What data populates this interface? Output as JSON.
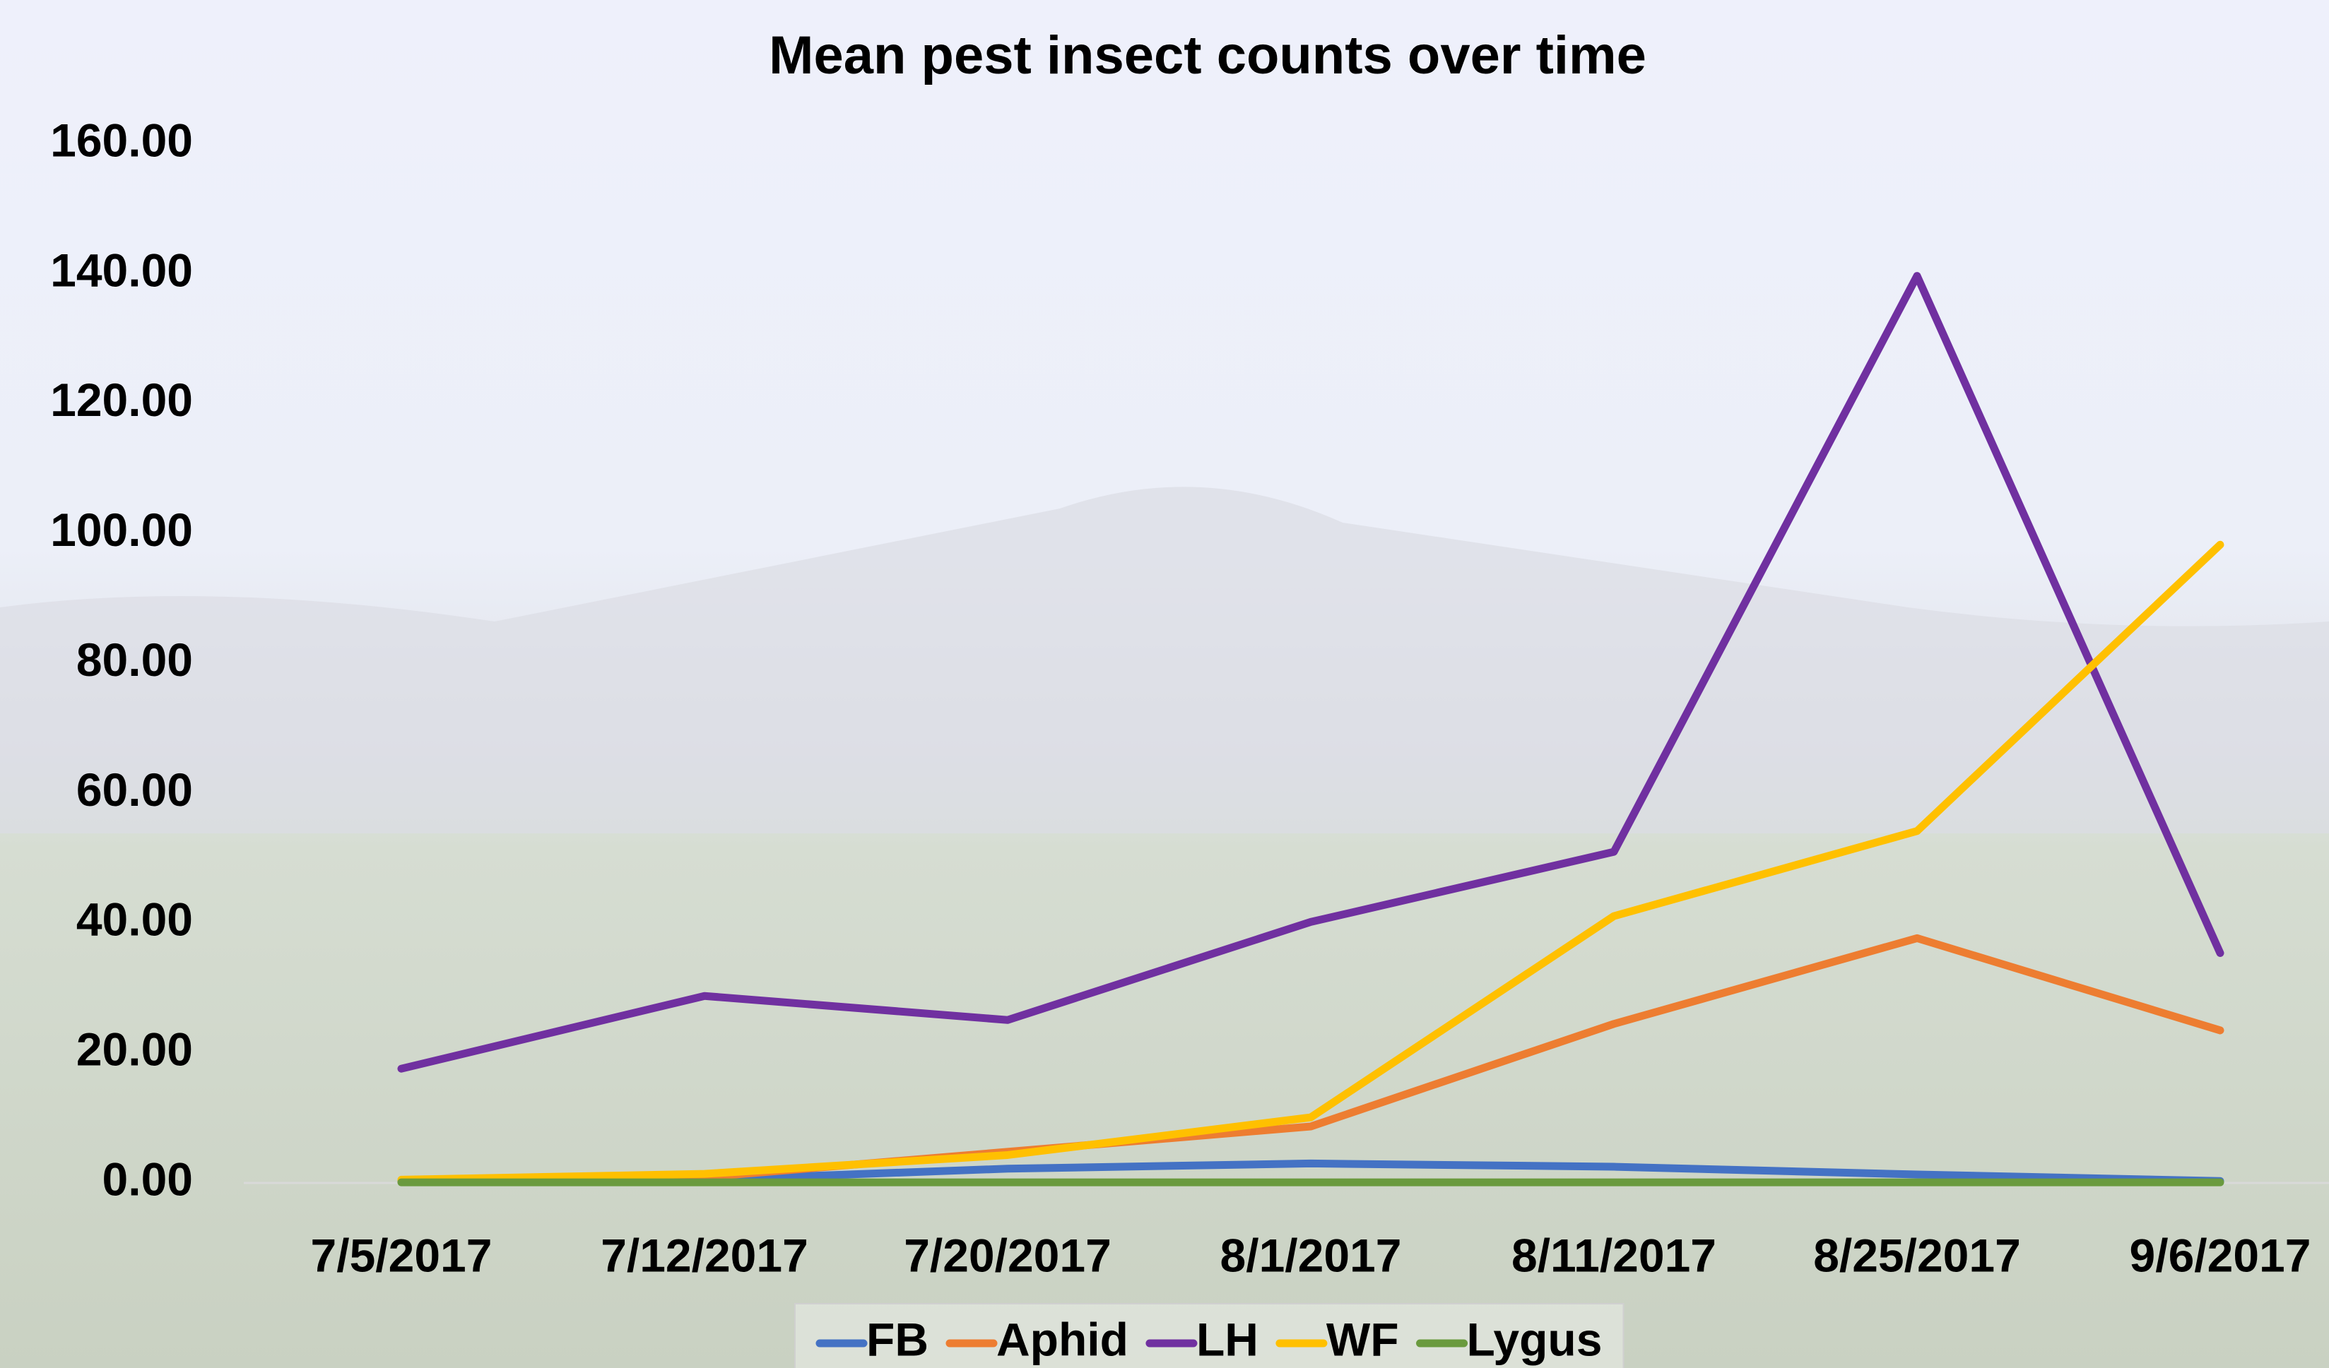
{
  "chart_data": {
    "type": "line",
    "title": "Mean pest insect counts over time",
    "categories": [
      "7/5/2017",
      "7/12/2017",
      "7/20/2017",
      "8/1/2017",
      "8/11/2017",
      "8/25/2017",
      "9/6/2017"
    ],
    "series": [
      {
        "name": "FB",
        "color": "#4472c4",
        "values": [
          0.2,
          0.5,
          2.2,
          3.0,
          2.5,
          1.3,
          0.3
        ]
      },
      {
        "name": "Aphid",
        "color": "#ed7d31",
        "values": [
          0.2,
          0.9,
          4.8,
          8.7,
          24.5,
          37.7,
          23.5
        ]
      },
      {
        "name": "LH",
        "color": "#7030a0",
        "values": [
          17.6,
          28.8,
          25.1,
          40.2,
          51.0,
          139.7,
          35.4
        ]
      },
      {
        "name": "WF",
        "color": "#ffc000",
        "values": [
          0.5,
          1.4,
          4.3,
          10.1,
          41.1,
          54.2,
          98.3
        ]
      },
      {
        "name": "Lygus",
        "color": "#6a9a3e",
        "values": [
          0.1,
          0.1,
          0.1,
          0.1,
          0.1,
          0.1,
          0.1
        ]
      }
    ],
    "ylim": [
      0,
      160
    ],
    "yticks": [
      {
        "value": 0,
        "label": "0.00"
      },
      {
        "value": 20,
        "label": "20.00"
      },
      {
        "value": 40,
        "label": "40.00"
      },
      {
        "value": 60,
        "label": "60.00"
      },
      {
        "value": 80,
        "label": "80.00"
      },
      {
        "value": 100,
        "label": "100.00"
      },
      {
        "value": 120,
        "label": "120.00"
      },
      {
        "value": 140,
        "label": "140.00"
      },
      {
        "value": 160,
        "label": "160.00"
      }
    ],
    "grid": false,
    "legend": "bottom"
  }
}
